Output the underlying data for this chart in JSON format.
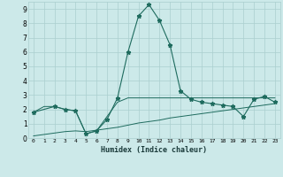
{
  "xlabel": "Humidex (Indice chaleur)",
  "bg_color": "#cce9e9",
  "grid_color": "#aacfcf",
  "line_color": "#1e6b5e",
  "xlim": [
    -0.5,
    23.5
  ],
  "ylim": [
    0,
    9.5
  ],
  "xticks": [
    0,
    1,
    2,
    3,
    4,
    5,
    6,
    7,
    8,
    9,
    10,
    11,
    12,
    13,
    14,
    15,
    16,
    17,
    18,
    19,
    20,
    21,
    22,
    23
  ],
  "yticks": [
    0,
    1,
    2,
    3,
    4,
    5,
    6,
    7,
    8,
    9
  ],
  "line1_x": [
    0,
    1,
    2,
    3,
    4,
    5,
    6,
    7,
    8,
    9,
    10,
    11,
    12,
    13,
    14,
    15,
    16,
    17,
    18,
    19,
    20,
    21,
    22,
    23
  ],
  "line1_y": [
    1.8,
    2.2,
    2.2,
    2.0,
    1.9,
    0.3,
    0.5,
    1.5,
    2.5,
    2.8,
    2.8,
    2.8,
    2.8,
    2.8,
    2.8,
    2.8,
    2.8,
    2.8,
    2.8,
    2.8,
    2.8,
    2.8,
    2.8,
    2.8
  ],
  "line2_x": [
    0,
    1,
    2,
    3,
    4,
    5,
    6,
    7,
    8,
    9,
    10,
    11,
    12,
    13,
    14,
    15,
    16,
    17,
    18,
    19,
    20,
    21,
    22,
    23
  ],
  "line2_y": [
    0.15,
    0.25,
    0.35,
    0.45,
    0.5,
    0.45,
    0.55,
    0.65,
    0.75,
    0.9,
    1.05,
    1.15,
    1.25,
    1.4,
    1.5,
    1.6,
    1.7,
    1.8,
    1.9,
    2.0,
    2.1,
    2.2,
    2.3,
    2.4
  ],
  "line3_x": [
    0,
    2,
    3,
    4,
    5,
    6,
    7,
    8,
    9,
    10,
    11,
    12,
    13,
    14,
    15,
    16,
    17,
    18,
    19,
    20,
    21,
    22,
    23
  ],
  "line3_y": [
    1.8,
    2.2,
    2.0,
    1.9,
    0.3,
    0.5,
    1.3,
    2.8,
    6.0,
    8.5,
    9.3,
    8.2,
    6.5,
    3.3,
    2.7,
    2.5,
    2.4,
    2.3,
    2.2,
    1.5,
    2.7,
    2.9,
    2.5
  ]
}
